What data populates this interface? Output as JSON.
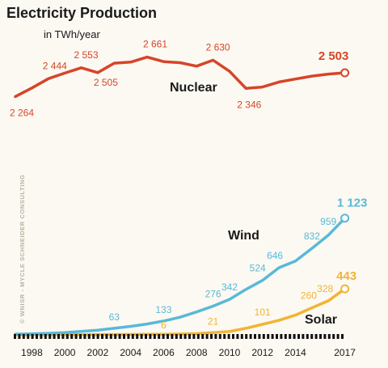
{
  "chart_data": {
    "type": "line",
    "title": "Electricity Production",
    "subtitle": "in TWh/year",
    "credit": "© WNISR - MYCLE SCHNEIDER CONSULTING",
    "x": [
      1997,
      1998,
      1999,
      2000,
      2001,
      2002,
      2003,
      2004,
      2005,
      2006,
      2007,
      2008,
      2009,
      2010,
      2011,
      2012,
      2013,
      2014,
      2015,
      2016,
      2017
    ],
    "x_tick_labels": [
      "1998",
      "2000",
      "2002",
      "2004",
      "2006",
      "2008",
      "2010",
      "2012",
      "2014",
      "2017"
    ],
    "xlim": [
      1997,
      2018
    ],
    "grid": false,
    "legend": "inline labels",
    "series": [
      {
        "name": "Nuclear",
        "color": "#d64529",
        "values": [
          2264,
          2350,
          2444,
          2500,
          2553,
          2505,
          2600,
          2610,
          2661,
          2615,
          2605,
          2570,
          2630,
          2518,
          2346,
          2360,
          2410,
          2440,
          2470,
          2490,
          2503
        ],
        "labels": [
          {
            "x": 1997,
            "text": "2 264"
          },
          {
            "x": 1999,
            "text": "2 444"
          },
          {
            "x": 2001,
            "text": "2 553"
          },
          {
            "x": 2002,
            "text": "2 505"
          },
          {
            "x": 2005,
            "text": "2 661"
          },
          {
            "x": 2009,
            "text": "2 630"
          },
          {
            "x": 2011,
            "text": "2 346"
          },
          {
            "x": 2017,
            "text": "2 503"
          }
        ]
      },
      {
        "name": "Wind",
        "color": "#58b9d8",
        "values": [
          7,
          10,
          15,
          22,
          33,
          45,
          63,
          82,
          104,
          133,
          170,
          220,
          276,
          342,
          437,
          524,
          646,
          710,
          832,
          959,
          1123
        ],
        "labels": [
          {
            "x": 2003,
            "text": "63"
          },
          {
            "x": 2006,
            "text": "133"
          },
          {
            "x": 2009,
            "text": "276"
          },
          {
            "x": 2010,
            "text": "342"
          },
          {
            "x": 2012,
            "text": "524"
          },
          {
            "x": 2013,
            "text": "646"
          },
          {
            "x": 2015,
            "text": "832"
          },
          {
            "x": 2016,
            "text": "959"
          },
          {
            "x": 2017,
            "text": "1 123"
          }
        ]
      },
      {
        "name": "Solar",
        "color": "#f2b434",
        "values": [
          0.5,
          0.7,
          1,
          1.3,
          1.7,
          2.3,
          3,
          4,
          4.6,
          6,
          8,
          12,
          21,
          32,
          63,
          101,
          139,
          190,
          260,
          328,
          443
        ],
        "labels": [
          {
            "x": 2006,
            "text": "6"
          },
          {
            "x": 2009,
            "text": "21"
          },
          {
            "x": 2012,
            "text": "101"
          },
          {
            "x": 2015,
            "text": "260"
          },
          {
            "x": 2016,
            "text": "328"
          },
          {
            "x": 2017,
            "text": "443"
          }
        ]
      }
    ]
  }
}
